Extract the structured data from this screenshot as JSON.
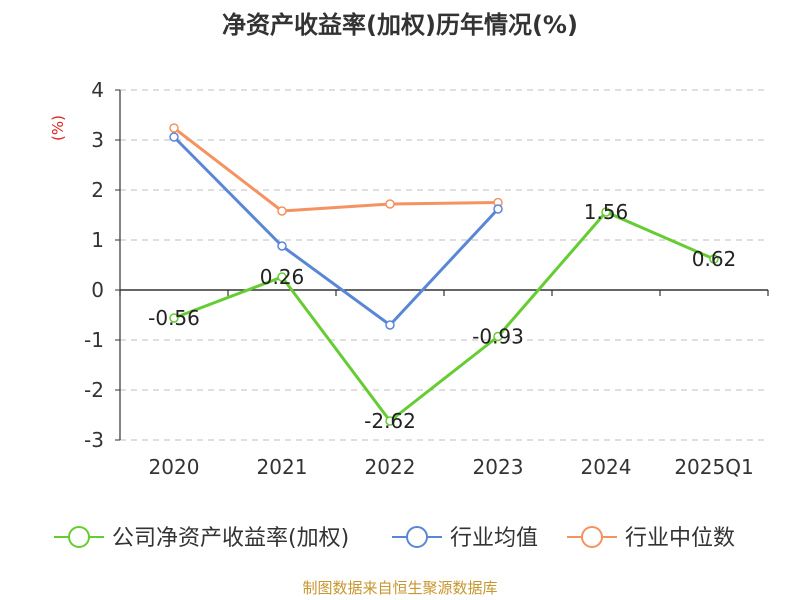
{
  "chart_data": {
    "type": "line",
    "title": "净资产收益率(加权)历年情况(%)",
    "ylabel": "(%)",
    "categories": [
      "2020",
      "2021",
      "2022",
      "2023",
      "2024",
      "2025Q1"
    ],
    "ylim": [
      -3,
      4
    ],
    "yticks": [
      "4",
      "3",
      "2",
      "1",
      "0",
      "-1",
      "-2",
      "-3"
    ],
    "grid": true,
    "legend_position": "bottom",
    "series": [
      {
        "name": "公司净资产收益率(加权)",
        "color": "#66cc33",
        "values": [
          -0.56,
          0.26,
          -2.62,
          -0.93,
          1.56,
          0.62
        ],
        "labels": [
          "-0.56",
          "0.26",
          "-2.62",
          "-0.93",
          "1.56",
          "0.62"
        ]
      },
      {
        "name": "行业均值",
        "color": "#5a86d6",
        "values": [
          3.06,
          0.88,
          -0.7,
          1.62,
          null,
          null
        ]
      },
      {
        "name": "行业中位数",
        "color": "#f59262",
        "values": [
          3.24,
          1.58,
          1.72,
          1.75,
          null,
          null
        ]
      }
    ]
  },
  "source": "制图数据来自恒生聚源数据库",
  "colors": {
    "ylabel": "#e02020",
    "source": "#c8962e",
    "axis": "#333333",
    "grid": "#cccccc"
  }
}
